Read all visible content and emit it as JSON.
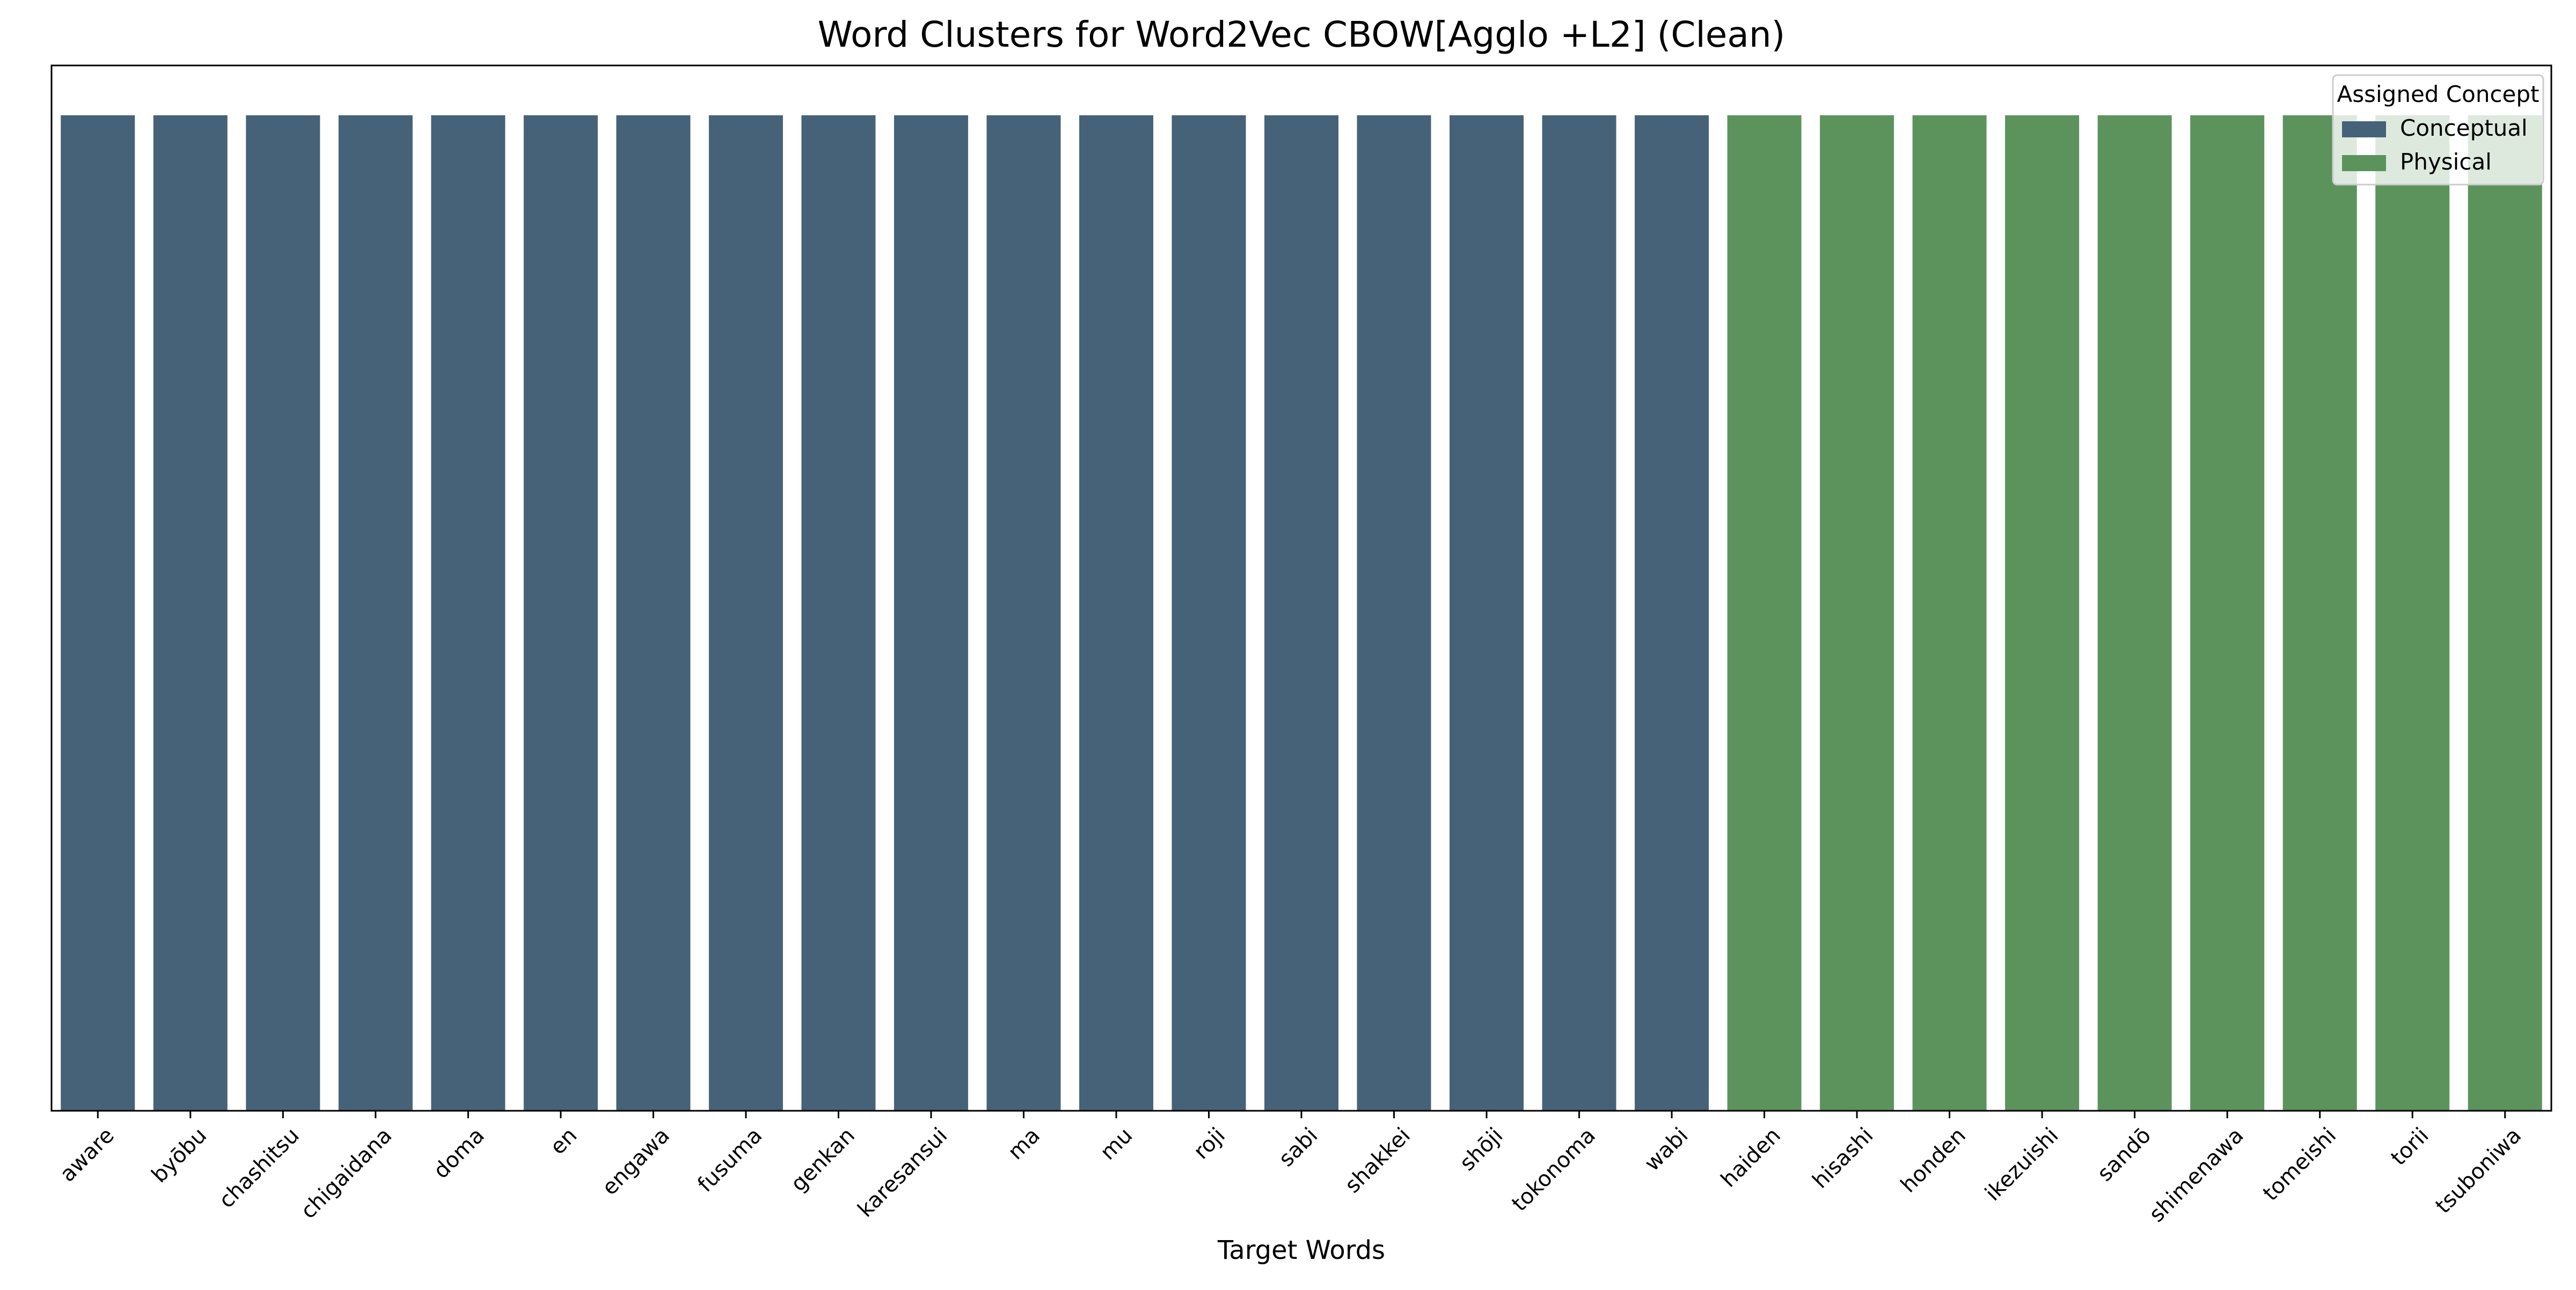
{
  "chart_data": {
    "type": "bar",
    "title": "Word Clusters for Word2Vec CBOW[Agglo +L2] (Clean)",
    "xlabel": "Target Words",
    "ylabel": "",
    "categories": [
      "aware",
      "byōbu",
      "chashitsu",
      "chigaidana",
      "doma",
      "en",
      "engawa",
      "fusuma",
      "genkan",
      "karesansui",
      "ma",
      "mu",
      "roji",
      "sabi",
      "shakkei",
      "shōji",
      "tokonoma",
      "wabi",
      "haiden",
      "hisashi",
      "honden",
      "ikezuishi",
      "sandō",
      "shimenawa",
      "tomeishi",
      "torii",
      "tsuboniwa"
    ],
    "values": [
      1,
      1,
      1,
      1,
      1,
      1,
      1,
      1,
      1,
      1,
      1,
      1,
      1,
      1,
      1,
      1,
      1,
      1,
      1,
      1,
      1,
      1,
      1,
      1,
      1,
      1,
      1
    ],
    "assigned": [
      "Conceptual",
      "Conceptual",
      "Conceptual",
      "Conceptual",
      "Conceptual",
      "Conceptual",
      "Conceptual",
      "Conceptual",
      "Conceptual",
      "Conceptual",
      "Conceptual",
      "Conceptual",
      "Conceptual",
      "Conceptual",
      "Conceptual",
      "Conceptual",
      "Conceptual",
      "Conceptual",
      "Physical",
      "Physical",
      "Physical",
      "Physical",
      "Physical",
      "Physical",
      "Physical",
      "Physical",
      "Physical"
    ],
    "ylim": [
      0,
      1.05
    ],
    "y_ticks_visible": false,
    "grid": false,
    "legend": {
      "title": "Assigned Concept",
      "placement": "top-right",
      "entries": [
        {
          "name": "Conceptual",
          "color": "#466279"
        },
        {
          "name": "Physical",
          "color": "#5c935d"
        }
      ]
    }
  }
}
